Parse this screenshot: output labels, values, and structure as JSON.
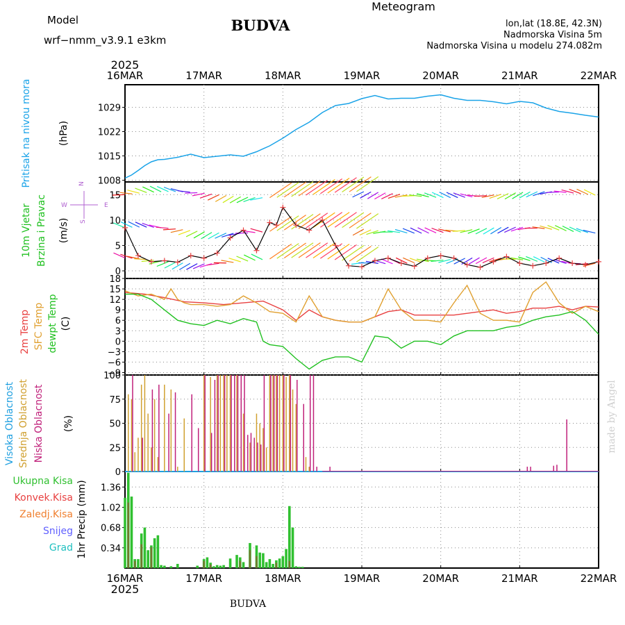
{
  "header": {
    "model_label": "Model",
    "model_name": "wrf−nmm_v3.9.1  e3km",
    "title": "BUDVA",
    "meteogram_label": "Meteogram",
    "lonlat": "lon,lat (18.8E, 42.3N)",
    "elevation": "Nadmorska Visina 5m",
    "model_elevation": "Nadmorska Visina u modelu 274.082m",
    "footer_title": "BUDVA",
    "credit": "made by Angel",
    "year_top": "2025",
    "year_bottom": "2025"
  },
  "colors": {
    "pressure": "#1aa3e8",
    "model": "#b060d0",
    "meteogram": "#e8c070",
    "temp2m": "#e84040",
    "sfc": "#e0a030",
    "dewpt": "#20c020",
    "high_cloud": "#20a0e0",
    "mid_cloud": "#d0a030",
    "low_cloud": "#c0207a",
    "precip_total": "#30c030",
    "precip_conv": "#e84040",
    "freezing": "#f08030",
    "snow": "#6060ff",
    "hail": "#20c0c0"
  },
  "chart_data": {
    "time_axis": {
      "ticks": [
        "16MAR",
        "17MAR",
        "18MAR",
        "19MAR",
        "20MAR",
        "21MAR",
        "22MAR"
      ],
      "range_hours": [
        0,
        144
      ]
    },
    "panels": [
      {
        "id": "pressure",
        "type": "line",
        "ylabel_name": "Pritisak na nivou mora",
        "ylabel_unit": "(hPa)",
        "yticks": [
          "1008",
          "1015",
          "1022",
          "1029"
        ],
        "ylim": [
          1007.5,
          1035.5
        ],
        "series": [
          {
            "name": "MSLP",
            "x": [
              0,
              2,
              4,
              6,
              8,
              10,
              12,
              16,
              20,
              24,
              28,
              32,
              36,
              40,
              44,
              48,
              52,
              56,
              60,
              64,
              68,
              72,
              76,
              80,
              84,
              88,
              92,
              96,
              100,
              104,
              108,
              112,
              116,
              120,
              124,
              128,
              132,
              136,
              140,
              144
            ],
            "y": [
              1008.6,
              1009.5,
              1010.8,
              1012.2,
              1013.3,
              1013.9,
              1014.0,
              1014.6,
              1015.5,
              1014.5,
              1014.9,
              1015.3,
              1014.9,
              1016.2,
              1017.9,
              1020.1,
              1022.6,
              1024.7,
              1027.5,
              1029.5,
              1030.1,
              1031.5,
              1032.4,
              1031.4,
              1031.6,
              1031.6,
              1032.2,
              1032.6,
              1031.6,
              1031.0,
              1031.0,
              1030.6,
              1030.0,
              1030.7,
              1030.3,
              1028.8,
              1027.8,
              1027.3,
              1026.7,
              1026.2
            ]
          }
        ]
      },
      {
        "id": "wind",
        "type": "line",
        "ylabel_name": "10m Vjetar",
        "ylabel_name2": "Brzina i Pravac",
        "ylabel_unit": "(m/s)",
        "compass": {
          "n": "N",
          "s": "S",
          "w": "W",
          "e": "E"
        },
        "yticks": [
          "0",
          "5",
          "10",
          "15"
        ],
        "ylim": [
          -1.5,
          17.5
        ],
        "series": [
          {
            "name": "Wind speed",
            "x": [
              0,
              4,
              8,
              12,
              16,
              20,
              24,
              28,
              32,
              36,
              40,
              44,
              46,
              48,
              52,
              56,
              60,
              64,
              68,
              72,
              76,
              80,
              84,
              88,
              92,
              96,
              100,
              104,
              108,
              112,
              116,
              120,
              124,
              128,
              132,
              136,
              140,
              144
            ],
            "y": [
              8.5,
              3.0,
              1.8,
              2.0,
              1.7,
              3.0,
              2.5,
              3.5,
              6.5,
              8.0,
              4.0,
              9.5,
              9.0,
              12.5,
              9.0,
              8.0,
              10.0,
              5.0,
              1.0,
              0.8,
              2.0,
              2.5,
              1.5,
              0.9,
              2.5,
              3.0,
              2.5,
              1.2,
              0.7,
              1.8,
              2.8,
              1.5,
              1.0,
              1.5,
              2.5,
              1.5,
              1.2,
              1.8
            ]
          }
        ]
      },
      {
        "id": "temp",
        "type": "line",
        "ylabel_a": "2m Temp",
        "ylabel_b": "SFC Temp",
        "ylabel_c": "dewpt Temp",
        "ylabel_unit": "(C)",
        "yticks": [
          "−9",
          "−6",
          "−3",
          "0",
          "3",
          "6",
          "9",
          "12",
          "15",
          "18"
        ],
        "ylim": [
          -9.7,
          18
        ],
        "series": [
          {
            "name": "2m Temp",
            "x": [
              0,
              6,
              12,
              18,
              24,
              30,
              36,
              42,
              48,
              52,
              56,
              60,
              64,
              68,
              72,
              76,
              80,
              84,
              88,
              92,
              96,
              100,
              104,
              108,
              112,
              116,
              120,
              124,
              128,
              132,
              136,
              140,
              144
            ],
            "y": [
              14,
              13.5,
              12.5,
              11.3,
              11,
              10.5,
              11,
              11.5,
              9,
              6,
              9,
              7,
              6,
              5.5,
              5.5,
              7,
              8.5,
              9,
              7.5,
              7.5,
              7.5,
              7.5,
              8,
              8.5,
              9,
              8,
              8.5,
              9.5,
              9.5,
              10,
              9,
              10,
              9.8
            ]
          },
          {
            "name": "SFC Temp",
            "x": [
              0,
              4,
              8,
              12,
              14,
              16,
              18,
              20,
              24,
              28,
              32,
              36,
              40,
              44,
              48,
              52,
              56,
              60,
              64,
              68,
              72,
              76,
              80,
              84,
              88,
              92,
              96,
              100,
              104,
              108,
              112,
              116,
              120,
              124,
              128,
              132,
              136,
              140,
              144
            ],
            "y": [
              14.5,
              13,
              13.5,
              12,
              15,
              12,
              11,
              10.5,
              10.5,
              10,
              10.5,
              13,
              11,
              8.5,
              8,
              5.5,
              13,
              7,
              6,
              5.5,
              5.5,
              7,
              15,
              9,
              6,
              6,
              5.5,
              11,
              16,
              8,
              6,
              6,
              5.5,
              14,
              17,
              11,
              8,
              10,
              8.5
            ]
          },
          {
            "name": "dewpt Temp",
            "x": [
              0,
              4,
              8,
              12,
              16,
              20,
              24,
              28,
              32,
              36,
              40,
              42,
              44,
              48,
              52,
              56,
              60,
              64,
              68,
              72,
              76,
              80,
              84,
              88,
              92,
              96,
              100,
              104,
              108,
              112,
              116,
              120,
              124,
              128,
              132,
              136,
              140,
              144
            ],
            "y": [
              13.5,
              13.5,
              12,
              9,
              6,
              5,
              4.5,
              6,
              5,
              6.5,
              5.5,
              0,
              -1,
              -1.5,
              -5,
              -8,
              -5.5,
              -4.5,
              -4.5,
              -6,
              1.5,
              1,
              -2,
              0,
              0,
              -1,
              1.5,
              3,
              3,
              3,
              4,
              4.5,
              6,
              7,
              7.5,
              8.5,
              6,
              2
            ]
          }
        ]
      },
      {
        "id": "cloud",
        "type": "bar",
        "ylabel_a": "Visoka Oblacnost",
        "ylabel_b": "Srednja Oblacnost",
        "ylabel_c": "Niska Oblacnost",
        "ylabel_unit": "(%)",
        "yticks": [
          "0",
          "25",
          "50",
          "75",
          "100"
        ],
        "ylim": [
          0,
          100
        ],
        "series": [
          {
            "name": "Visoka Oblacnost",
            "x": [],
            "values": []
          },
          {
            "name": "Srednja Oblacnost",
            "x": [
              1,
              2,
              3,
              4,
              5,
              6,
              7,
              8,
              9,
              10,
              12,
              14,
              16,
              18,
              24,
              26,
              28,
              29,
              30,
              31,
              32,
              34,
              36,
              38,
              40,
              41,
              42,
              43,
              44,
              45,
              46,
              47,
              48,
              49,
              50,
              51,
              52,
              55,
              56
            ],
            "values": [
              80,
              75,
              20,
              35,
              90,
              100,
              60,
              25,
              75,
              15,
              90,
              85,
              5,
              55,
              100,
              98,
              100,
              100,
              100,
              100,
              100,
              100,
              60,
              30,
              60,
              50,
              45,
              25,
              100,
              100,
              100,
              100,
              100,
              98,
              100,
              85,
              70,
              15,
              5
            ]
          },
          {
            "name": "Niska Oblacnost",
            "x": [
              2,
              5,
              8,
              10,
              13,
              15,
              20,
              22,
              24,
              26,
              27,
              28,
              30,
              32,
              33,
              34,
              35,
              36,
              37,
              38,
              39,
              40,
              41,
              42,
              44,
              45,
              46,
              48,
              50,
              52,
              54,
              56,
              57,
              58,
              62,
              122,
              123,
              130,
              131,
              134
            ],
            "values": [
              100,
              35,
              85,
              90,
              60,
              82,
              80,
              45,
              100,
              40,
              95,
              100,
              100,
              100,
              100,
              100,
              100,
              100,
              38,
              40,
              35,
              30,
              28,
              100,
              100,
              100,
              100,
              100,
              100,
              95,
              70,
              100,
              100,
              5,
              5,
              5,
              5,
              6,
              7,
              54
            ]
          }
        ]
      },
      {
        "id": "precip",
        "type": "bar",
        "labels": [
          "Ukupna Kisa",
          "Konvek.Kisa",
          "Zaledj.Kisa",
          "Snijeg",
          "Grad"
        ],
        "ylabel_unit": "1hr Precip (mm)",
        "yticks": [
          "0.34",
          "0.68",
          "1.02",
          "1.36"
        ],
        "ylim": [
          0,
          1.62
        ],
        "series": [
          {
            "name": "Ukupna Kisa",
            "x": [
              0,
              1,
              2,
              3,
              4,
              5,
              6,
              7,
              8,
              9,
              10,
              11,
              12,
              14,
              16,
              22,
              24,
              25,
              26,
              27,
              28,
              29,
              30,
              32,
              34,
              35,
              36,
              38,
              40,
              41,
              42,
              43,
              44,
              45,
              46,
              47,
              48,
              49,
              50,
              51,
              52,
              53,
              54
            ],
            "values": [
              1.18,
              1.6,
              1.2,
              0.15,
              0.15,
              0.58,
              0.68,
              0.3,
              0.38,
              0.5,
              0.55,
              0.05,
              0.04,
              0.03,
              0.07,
              0.04,
              0.15,
              0.18,
              0.09,
              0.03,
              0.05,
              0.04,
              0.05,
              0.16,
              0.22,
              0.18,
              0.1,
              0.42,
              0.38,
              0.26,
              0.25,
              0.1,
              0.15,
              0.07,
              0.13,
              0.16,
              0.2,
              0.32,
              1.04,
              0.68,
              0.03,
              0.02,
              0.02
            ]
          },
          {
            "name": "Konvek.Kisa",
            "x": [
              1,
              3,
              5,
              8,
              24,
              26,
              35,
              38,
              40,
              46,
              50
            ],
            "values": [
              1.1,
              0.12,
              0.4,
              0.35,
              0.12,
              0.06,
              0.12,
              0.3,
              0.2,
              0.09,
              0.12
            ]
          }
        ]
      }
    ]
  }
}
